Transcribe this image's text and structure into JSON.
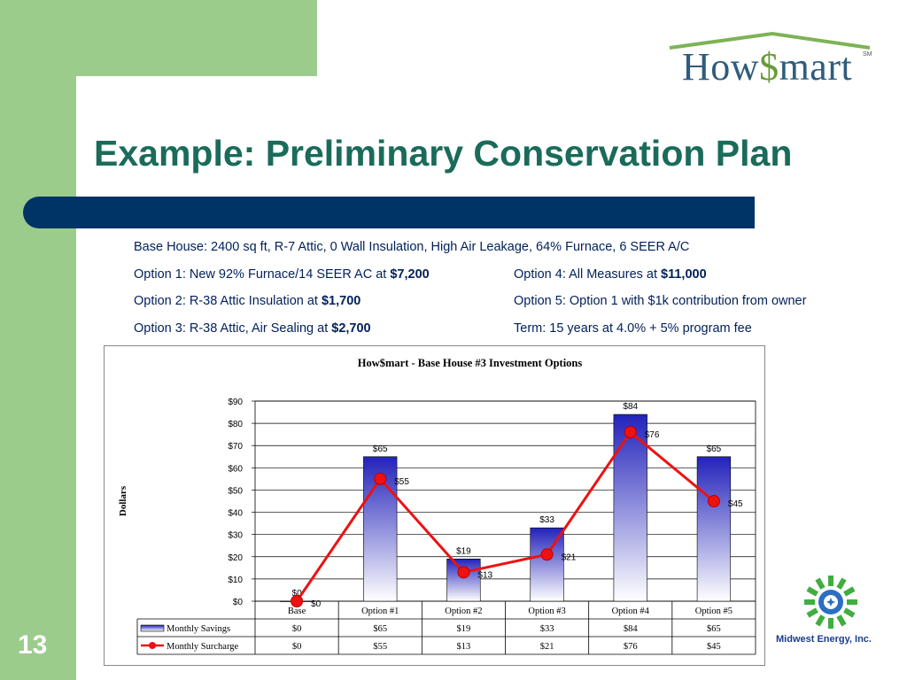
{
  "slide": {
    "title": "Example:  Preliminary Conservation Plan",
    "page_number": "13",
    "logo": {
      "part1": "How",
      "dollar": "$",
      "part2": "mart",
      "sm": "SM"
    },
    "partner_logo_text": "Midwest Energy, Inc.",
    "colors": {
      "green": "#9ccc8c",
      "navy": "#003366",
      "title": "#1a6b5a",
      "text": "#00205b"
    }
  },
  "info": {
    "base": "Base House:  2400 sq ft, R-7 Attic, 0 Wall Insulation, High Air Leakage, 64% Furnace, 6 SEER A/C",
    "opt1_text": "Option 1:  New 92% Furnace/14 SEER AC at ",
    "opt1_price": "$7,200",
    "opt2_text": "Option 2:  R-38 Attic Insulation at ",
    "opt2_price": "$1,700",
    "opt3_text": "Option 3:  R-38 Attic, Air Sealing at ",
    "opt3_price": "$2,700",
    "opt4_text": "Option 4:  All Measures at ",
    "opt4_price": "$11,000",
    "opt5_text": "Option 5:  Option 1 with $1k contribution from owner",
    "term_text": "Term:  15 years at 4.0% + 5% program fee"
  },
  "chart_data": {
    "type": "bar",
    "title": "How$mart - Base House #3 Investment Options",
    "ylabel": "Dollars",
    "xlabel": "",
    "ylim": [
      0,
      90
    ],
    "yticks": [
      "$0",
      "$10",
      "$20",
      "$30",
      "$40",
      "$50",
      "$60",
      "$70",
      "$80",
      "$90"
    ],
    "grid": true,
    "categories": [
      "Base",
      "Option #1",
      "Option #2",
      "Option #3",
      "Option #4",
      "Option #5"
    ],
    "series": [
      {
        "name": "Monthly Savings",
        "type": "bar",
        "values": [
          0,
          65,
          19,
          33,
          84,
          65
        ],
        "labels": [
          "$0",
          "$65",
          "$19",
          "$33",
          "$84",
          "$65"
        ],
        "color": "#3333cc"
      },
      {
        "name": "Monthly Surcharge",
        "type": "line",
        "values": [
          0,
          55,
          13,
          21,
          76,
          45
        ],
        "labels": [
          "$0",
          "$55",
          "$13",
          "$21",
          "$76",
          "$45"
        ],
        "color": "#ee1111"
      }
    ],
    "legend": "data-table below chart"
  }
}
